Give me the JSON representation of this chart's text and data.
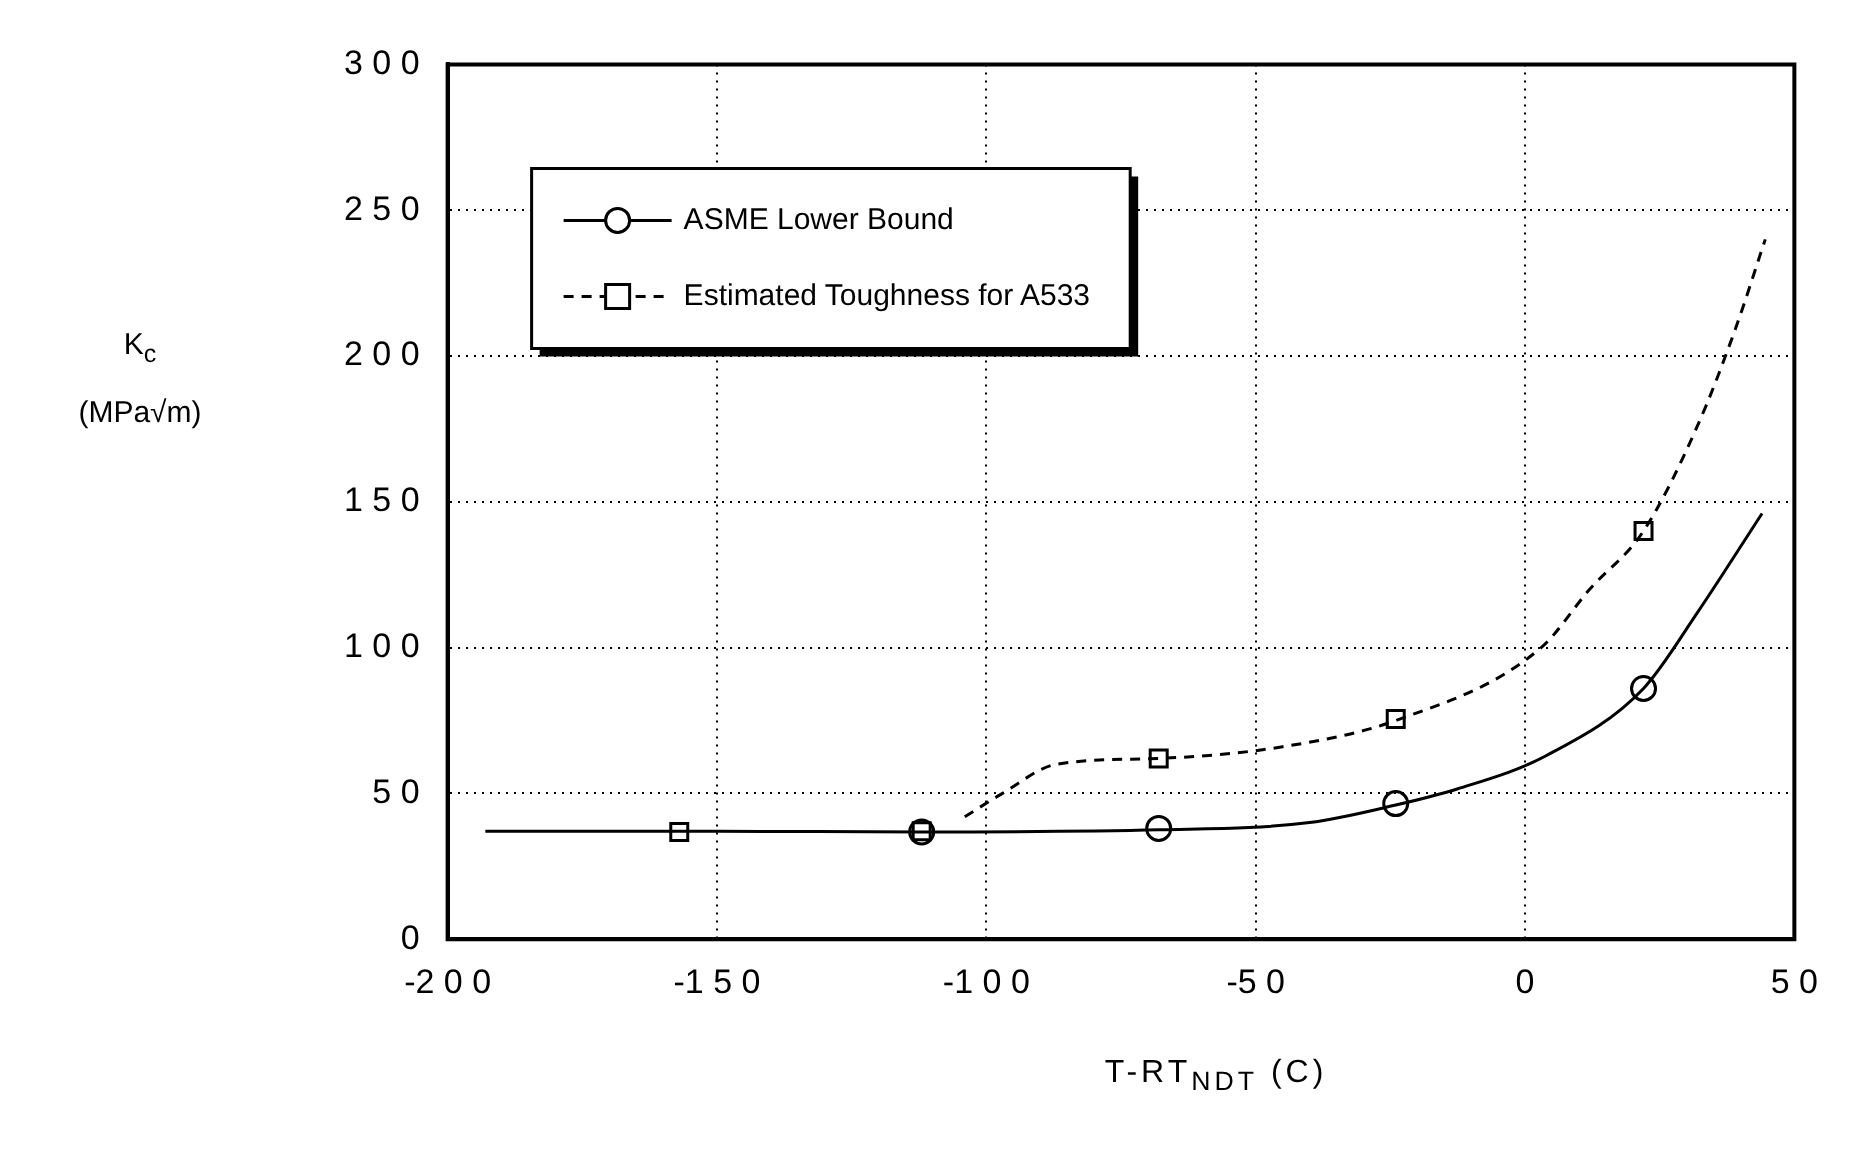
{
  "chart_data": {
    "type": "line",
    "xlabel": "T-RT$_{NDT}$  (C)",
    "ylabel": "K$_{c}$ (MPa√m)",
    "xlim": [
      -200,
      50
    ],
    "xticks": [
      -200,
      -150,
      -100,
      -50,
      0,
      50
    ],
    "ylim": [
      0,
      300
    ],
    "yticks": [
      0,
      50,
      100,
      150,
      200,
      250,
      300
    ],
    "grid": true,
    "legend": "top left",
    "series": [
      {
        "name": "ASME Lower Bound",
        "color": "#000000",
        "line_style": "solid",
        "marker": "none",
        "x": [
          -193,
          -150,
          -112,
          -68,
          -40,
          -24,
          -12.6,
          4,
          22,
          32,
          44
        ],
        "values": [
          37,
          37,
          36.8,
          37.5,
          40,
          46,
          51.5,
          63,
          86,
          112,
          146
        ]
      },
      {
        "type": "scatter",
        "color": "#000000",
        "marker": "circle",
        "x": [
          -112,
          -68,
          -24,
          22
        ],
        "values": [
          36.8,
          38,
          46.5,
          86
        ]
      },
      {
        "name": "Estimated Toughness for A533",
        "color": "#000000",
        "line_style": "dashed",
        "marker": "none",
        "x": [
          -104,
          -97,
          -87,
          -68,
          -45,
          -24,
          3,
          12,
          22,
          32,
          39,
          44.6
        ],
        "values": [
          42,
          50,
          60,
          62,
          66,
          75,
          100,
          120,
          140,
          176,
          209,
          240
        ]
      },
      {
        "type": "scatter",
        "color": "#000000",
        "marker": "square",
        "x": [
          -157,
          -112,
          -68,
          -24,
          22
        ],
        "values": [
          36.8,
          37,
          62,
          75.5,
          140
        ]
      }
    ]
  }
}
